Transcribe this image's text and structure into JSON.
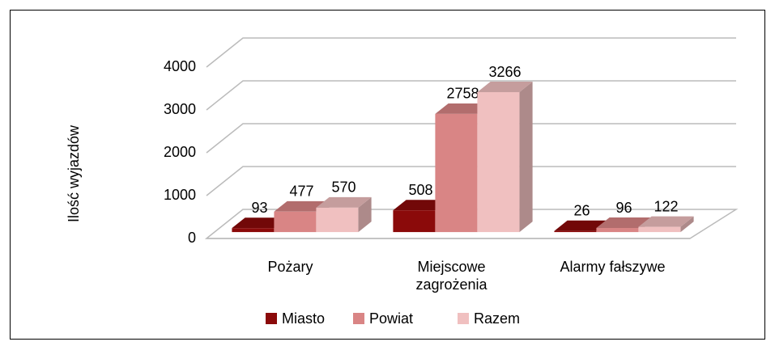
{
  "chart_data": {
    "type": "bar3d",
    "y_label": "Ilość wyjazdów",
    "categories": [
      "Pożary",
      "Miejscowe zagrożenia",
      "Alarmy fałszywe"
    ],
    "series": [
      {
        "name": "Miasto",
        "color": "#8b0a0a",
        "values": [
          93,
          508,
          26
        ]
      },
      {
        "name": "Powiat",
        "color": "#d98585",
        "values": [
          477,
          2758,
          96
        ]
      },
      {
        "name": "Razem",
        "color": "#f0c0c0",
        "values": [
          570,
          3266,
          122
        ]
      }
    ],
    "ylim": [
      0,
      4000
    ],
    "yticks": [
      0,
      1000,
      2000,
      3000,
      4000
    ],
    "grid": true,
    "legend": "bottom"
  }
}
